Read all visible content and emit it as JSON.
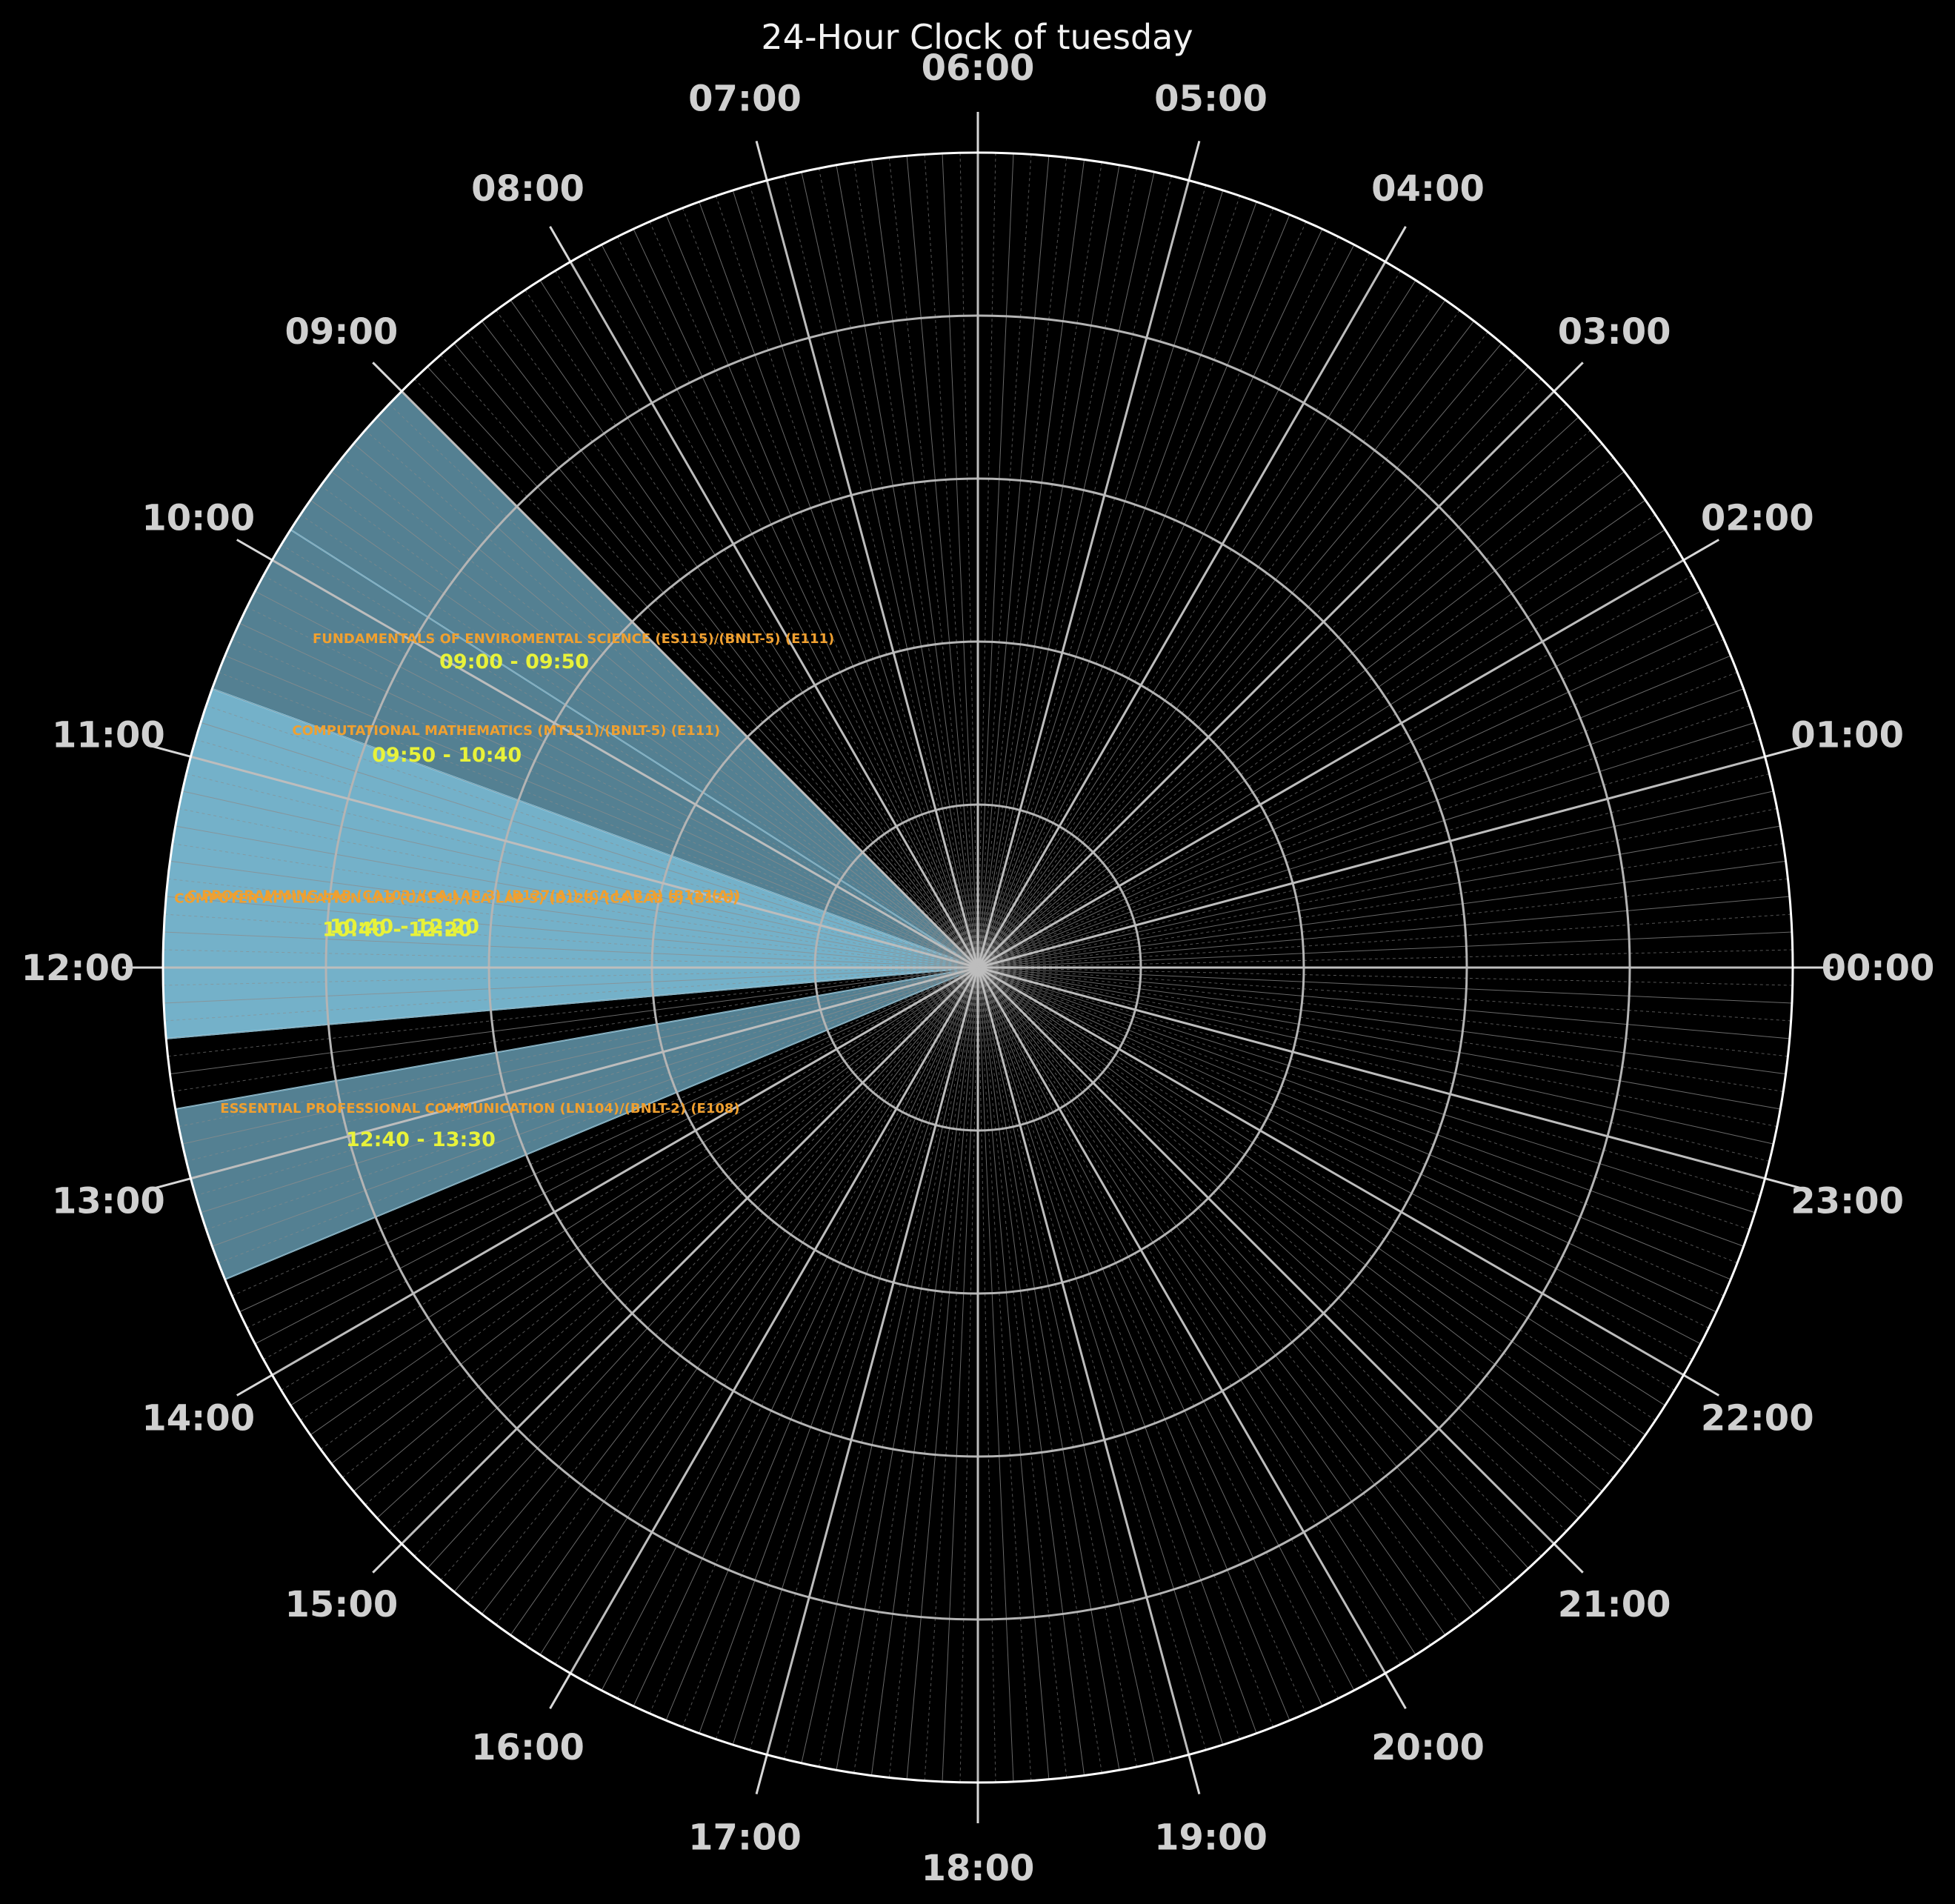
{
  "chart_data": {
    "type": "polar-clock",
    "title": "24-Hour Clock of tuesday",
    "hour_labels": [
      "00:00",
      "01:00",
      "02:00",
      "03:00",
      "04:00",
      "05:00",
      "06:00",
      "07:00",
      "08:00",
      "09:00",
      "10:00",
      "11:00",
      "12:00",
      "13:00",
      "14:00",
      "15:00",
      "16:00",
      "17:00",
      "18:00",
      "19:00",
      "20:00",
      "21:00",
      "22:00",
      "23:00"
    ],
    "orientation": "counter-clockwise, 00:00 at right (east), 06:00 at top",
    "grid": true,
    "fill_color": "#87ceeb",
    "events": [
      {
        "name": "FUNDAMENTALS OF ENVIROMENTAL SCIENCE (ES115)/(BNLT-5) (E111)",
        "time": "09:00 - 09:50",
        "start": "09:00",
        "end": "09:50"
      },
      {
        "name": "COMPUTATIONAL MATHEMATICS (MT151)/(BNLT-5) (E111)",
        "time": "09:50 - 10:40",
        "start": "09:50",
        "end": "10:40"
      },
      {
        "name": "C PROGRAMMING LAB (CA103)/(CA LAB 3) (B127(A)) (CA LAB 3) (B127(A))",
        "time": "10:40 - 12:20",
        "start": "10:40",
        "end": "12:20"
      },
      {
        "name": "COMPUTER APPLICATION LAB (CA104)/(CA LAB 5) (B126) (CA LAB 5) (B126)",
        "time": "10:40 - 12:20",
        "start": "10:40",
        "end": "12:20"
      },
      {
        "name": "ESSENTIAL PROFESSIONAL COMMUNICATION (LN104)/(BNLT-2) (E108)",
        "time": "12:40 - 13:30",
        "start": "12:40",
        "end": "13:30"
      }
    ]
  }
}
